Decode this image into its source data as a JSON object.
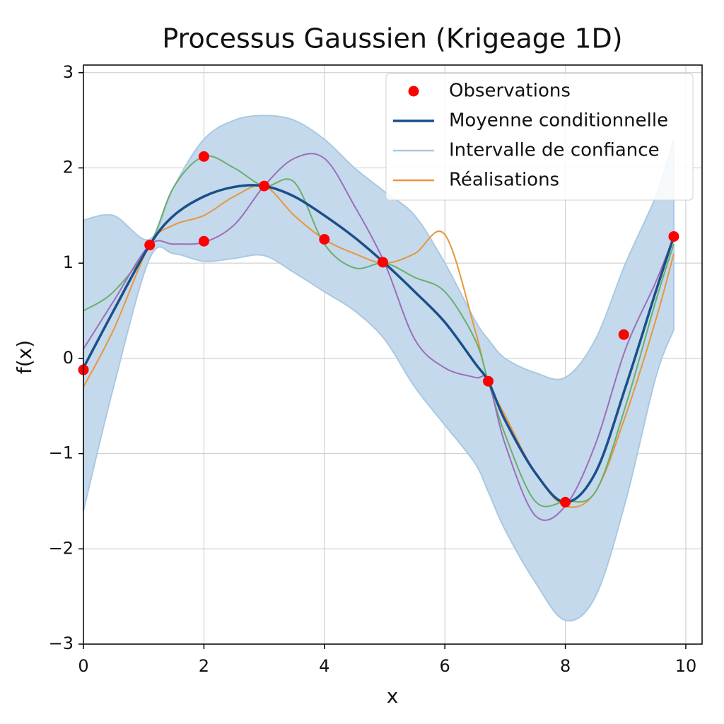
{
  "chart_data": {
    "type": "gaussian-process",
    "title": "Processus Gaussien (Krigeage 1D)",
    "x_label": "x",
    "y_label": "f(x)",
    "xlim": [
      0,
      10.27
    ],
    "ylim": [
      -3,
      3.08
    ],
    "xticks": [
      0,
      2,
      4,
      6,
      8,
      10
    ],
    "yticks": [
      {
        "value": -3,
        "label": "−3"
      },
      {
        "value": -2,
        "label": "−2"
      },
      {
        "value": -1,
        "label": "−1"
      },
      0,
      1,
      2,
      3
    ],
    "grid": true,
    "legend": "upper right",
    "observations": {
      "name": "Observations",
      "color": "#ff0000",
      "x": [
        0,
        1.1,
        2,
        2,
        3,
        4,
        4.97,
        6.72,
        8,
        8.97,
        9.8
      ],
      "values": [
        -0.12,
        1.19,
        2.12,
        1.23,
        1.81,
        1.25,
        1.01,
        -0.24,
        -1.51,
        0.25,
        1.28
      ]
    },
    "x": [
      0,
      0.5,
      1.1,
      1.5,
      2,
      2.5,
      3,
      3.5,
      4,
      4.5,
      5,
      5.5,
      6,
      6.5,
      6.72,
      7,
      7.5,
      8,
      8.5,
      9,
      9.5,
      9.8
    ],
    "mean": {
      "name": "Moyenne conditionnelle",
      "color": "#1a4f8a",
      "values": [
        -0.1,
        0.5,
        1.19,
        1.5,
        1.7,
        1.8,
        1.81,
        1.7,
        1.5,
        1.27,
        1.0,
        0.7,
        0.38,
        -0.05,
        -0.24,
        -0.65,
        -1.2,
        -1.51,
        -1.2,
        -0.3,
        0.7,
        1.28
      ]
    },
    "interval": {
      "name": "Intervalle de confiance",
      "color": "#a9c9e2",
      "fill": "#c4d9ec",
      "upper": [
        1.45,
        1.5,
        1.25,
        1.8,
        2.3,
        2.5,
        2.55,
        2.5,
        2.3,
        2.0,
        1.75,
        1.5,
        1.0,
        0.4,
        0.2,
        0.0,
        -0.15,
        -0.2,
        0.2,
        1.0,
        1.7,
        2.3
      ],
      "lower": [
        -1.6,
        -0.3,
        1.05,
        1.1,
        1.02,
        1.05,
        1.08,
        0.9,
        0.7,
        0.5,
        0.2,
        -0.3,
        -0.7,
        -1.1,
        -1.4,
        -1.8,
        -2.35,
        -2.75,
        -2.5,
        -1.5,
        -0.2,
        0.3
      ]
    },
    "realizations": {
      "name": "Réalisations",
      "color": "#e8963a",
      "lines": [
        {
          "color": "#e8963a",
          "values": [
            -0.3,
            0.3,
            1.19,
            1.4,
            1.5,
            1.7,
            1.81,
            1.5,
            1.25,
            1.1,
            1.0,
            1.1,
            1.3,
            0.3,
            -0.24,
            -0.6,
            -1.2,
            -1.55,
            -1.4,
            -0.6,
            0.4,
            1.1
          ]
        },
        {
          "color": "#6aaf6a",
          "values": [
            0.5,
            0.7,
            1.19,
            1.8,
            2.12,
            2.0,
            1.81,
            1.85,
            1.2,
            0.95,
            1.0,
            0.85,
            0.7,
            0.2,
            -0.24,
            -0.8,
            -1.5,
            -1.5,
            -1.4,
            -0.5,
            0.6,
            1.2
          ]
        },
        {
          "color": "#9a6fb8",
          "values": [
            0.1,
            0.6,
            1.19,
            1.2,
            1.22,
            1.4,
            1.81,
            2.1,
            2.1,
            1.6,
            1.0,
            0.2,
            -0.1,
            -0.2,
            -0.24,
            -0.9,
            -1.65,
            -1.55,
            -0.9,
            0.1,
            0.8,
            1.28
          ]
        }
      ]
    }
  }
}
